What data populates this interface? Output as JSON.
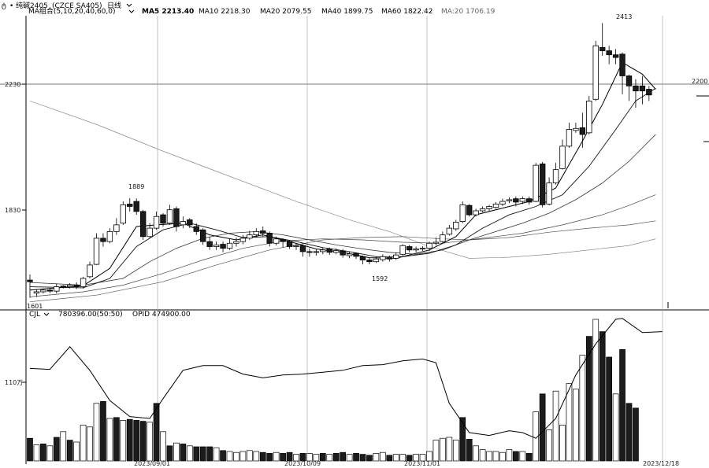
{
  "header": {
    "logo_glyph": "ტ",
    "instrument": "纯碱2405",
    "instrument_code": "(CZCE SA405)",
    "period_label": "日线",
    "indicator_name": "MA组合(5,10,20,40,60,0)",
    "ma5": "MA5 2213.40",
    "ma10": "MA10 2218.30",
    "ma20": "MA20 2079.55",
    "ma40": "MA40 1899.75",
    "ma60": "MA60 1822.42",
    "ma_extra": "MA:20 1706.19"
  },
  "volume_header": {
    "indicator": "CJL",
    "values": "780396.00(50:50)",
    "opi": "OPID 474900.00"
  },
  "colors": {
    "up": "#ffffff",
    "down": "#1c1c1c",
    "line": "#000000",
    "grid": "#9a9a9a"
  },
  "icons": {
    "header_chevron": "chevron-down-icon",
    "period_chevron": "chevron-down-icon"
  },
  "chart_data": {
    "type": "candlestick",
    "price_axis": {
      "ticks": [
        "2230",
        "1830"
      ],
      "right_label": "2200"
    },
    "volume_axis": {
      "ticks": [
        "110万"
      ]
    },
    "x_ticks": [
      "2023/09/01",
      "2023/10/09",
      "2023/11/01",
      "2023/12/18"
    ],
    "annotations": {
      "high": "2413",
      "peak": "1889",
      "low": "1592",
      "start_low": "1601"
    },
    "candles": [
      [
        1645,
        1640,
        1662,
        1592
      ],
      [
        1606,
        1610,
        1618,
        1595
      ],
      [
        1610,
        1615,
        1620,
        1605
      ],
      [
        1615,
        1612,
        1622,
        1606
      ],
      [
        1612,
        1625,
        1635,
        1605
      ],
      [
        1627,
        1624,
        1630,
        1620
      ],
      [
        1625,
        1630,
        1636,
        1620
      ],
      [
        1630,
        1625,
        1638,
        1618
      ],
      [
        1625,
        1650,
        1655,
        1620
      ],
      [
        1655,
        1690,
        1700,
        1650
      ],
      [
        1692,
        1770,
        1785,
        1690
      ],
      [
        1770,
        1760,
        1785,
        1745
      ],
      [
        1760,
        1790,
        1800,
        1755
      ],
      [
        1790,
        1810,
        1830,
        1780
      ],
      [
        1815,
        1870,
        1880,
        1810
      ],
      [
        1872,
        1865,
        1890,
        1850
      ],
      [
        1880,
        1850,
        1889,
        1840
      ],
      [
        1850,
        1775,
        1855,
        1765
      ],
      [
        1775,
        1800,
        1815,
        1770
      ],
      [
        1800,
        1835,
        1850,
        1795
      ],
      [
        1840,
        1815,
        1845,
        1805
      ],
      [
        1815,
        1855,
        1870,
        1810
      ],
      [
        1858,
        1805,
        1865,
        1790
      ],
      [
        1810,
        1820,
        1835,
        1800
      ],
      [
        1825,
        1810,
        1830,
        1800
      ],
      [
        1805,
        1790,
        1815,
        1780
      ],
      [
        1795,
        1760,
        1800,
        1750
      ],
      [
        1760,
        1745,
        1775,
        1735
      ],
      [
        1745,
        1750,
        1760,
        1735
      ],
      [
        1752,
        1740,
        1760,
        1728
      ],
      [
        1740,
        1755,
        1768,
        1735
      ],
      [
        1755,
        1760,
        1772,
        1745
      ],
      [
        1760,
        1770,
        1780,
        1752
      ],
      [
        1770,
        1780,
        1792,
        1765
      ],
      [
        1780,
        1790,
        1800,
        1772
      ],
      [
        1792,
        1785,
        1805,
        1775
      ],
      [
        1785,
        1755,
        1790,
        1745
      ],
      [
        1755,
        1768,
        1775,
        1748
      ],
      [
        1765,
        1760,
        1770,
        1742
      ],
      [
        1760,
        1745,
        1765,
        1738
      ],
      [
        1745,
        1748,
        1755,
        1735
      ],
      [
        1748,
        1730,
        1752,
        1715
      ],
      [
        1730,
        1728,
        1740,
        1715
      ],
      [
        1728,
        1730,
        1738,
        1718
      ],
      [
        1730,
        1735,
        1742,
        1722
      ],
      [
        1738,
        1728,
        1742,
        1720
      ],
      [
        1728,
        1733,
        1740,
        1722
      ],
      [
        1732,
        1720,
        1738,
        1712
      ],
      [
        1718,
        1723,
        1730,
        1710
      ],
      [
        1725,
        1716,
        1728,
        1708
      ],
      [
        1715,
        1705,
        1718,
        1692
      ],
      [
        1705,
        1700,
        1712,
        1692
      ],
      [
        1700,
        1708,
        1715,
        1696
      ],
      [
        1706,
        1715,
        1722,
        1700
      ],
      [
        1712,
        1708,
        1718,
        1700
      ],
      [
        1710,
        1720,
        1728,
        1705
      ],
      [
        1722,
        1748,
        1752,
        1718
      ],
      [
        1745,
        1735,
        1750,
        1728
      ],
      [
        1735,
        1738,
        1745,
        1728
      ],
      [
        1738,
        1740,
        1746,
        1732
      ],
      [
        1740,
        1755,
        1760,
        1732
      ],
      [
        1755,
        1758,
        1772,
        1748
      ],
      [
        1760,
        1780,
        1790,
        1755
      ],
      [
        1782,
        1800,
        1810,
        1778
      ],
      [
        1798,
        1818,
        1825,
        1792
      ],
      [
        1820,
        1870,
        1880,
        1815
      ],
      [
        1868,
        1840,
        1872,
        1835
      ],
      [
        1840,
        1852,
        1858,
        1835
      ],
      [
        1852,
        1858,
        1865,
        1848
      ],
      [
        1858,
        1865,
        1870,
        1850
      ],
      [
        1862,
        1872,
        1878,
        1858
      ],
      [
        1872,
        1880,
        1888,
        1866
      ],
      [
        1882,
        1885,
        1892,
        1875
      ],
      [
        1888,
        1878,
        1895,
        1865
      ],
      [
        1880,
        1888,
        1895,
        1872
      ],
      [
        1888,
        1878,
        1895,
        1870
      ],
      [
        1880,
        1988,
        1995,
        1878
      ],
      [
        1992,
        1870,
        1998,
        1862
      ],
      [
        1872,
        1935,
        1952,
        1868
      ],
      [
        1935,
        1975,
        1995,
        1930
      ],
      [
        1978,
        2045,
        2065,
        1975
      ],
      [
        2045,
        2095,
        2115,
        2040
      ],
      [
        2092,
        2098,
        2115,
        2085
      ],
      [
        2100,
        2080,
        2145,
        2040
      ],
      [
        2085,
        2180,
        2195,
        2080
      ],
      [
        2185,
        2345,
        2360,
        2180
      ],
      [
        2340,
        2330,
        2413,
        2315
      ],
      [
        2330,
        2318,
        2345,
        2290
      ],
      [
        2318,
        2310,
        2335,
        2290
      ],
      [
        2320,
        2255,
        2325,
        2200
      ],
      [
        2255,
        2225,
        2258,
        2180
      ],
      [
        2225,
        2210,
        2245,
        2160
      ],
      [
        2225,
        2210,
        2255,
        2170
      ],
      [
        2215,
        2198,
        2225,
        2180
      ]
    ],
    "ma5": [
      [
        0,
        1615
      ],
      [
        8,
        1628
      ],
      [
        12,
        1680
      ],
      [
        16,
        1805
      ],
      [
        19,
        1810
      ],
      [
        23,
        1815
      ],
      [
        27,
        1780
      ],
      [
        31,
        1765
      ],
      [
        35,
        1780
      ],
      [
        39,
        1760
      ],
      [
        43,
        1738
      ],
      [
        47,
        1728
      ],
      [
        51,
        1712
      ],
      [
        55,
        1710
      ],
      [
        60,
        1735
      ],
      [
        64,
        1775
      ],
      [
        67,
        1840
      ],
      [
        71,
        1860
      ],
      [
        75,
        1880
      ],
      [
        79,
        1920
      ],
      [
        83,
        2060
      ],
      [
        86,
        2170
      ],
      [
        89,
        2295
      ],
      [
        92,
        2260
      ],
      [
        94,
        2215
      ]
    ],
    "ma10": [
      [
        0,
        1625
      ],
      [
        8,
        1622
      ],
      [
        12,
        1650
      ],
      [
        16,
        1745
      ],
      [
        20,
        1795
      ],
      [
        24,
        1815
      ],
      [
        28,
        1795
      ],
      [
        32,
        1772
      ],
      [
        36,
        1775
      ],
      [
        40,
        1760
      ],
      [
        44,
        1742
      ],
      [
        48,
        1730
      ],
      [
        52,
        1715
      ],
      [
        56,
        1715
      ],
      [
        60,
        1725
      ],
      [
        64,
        1750
      ],
      [
        68,
        1800
      ],
      [
        72,
        1840
      ],
      [
        76,
        1865
      ],
      [
        80,
        1900
      ],
      [
        84,
        1985
      ],
      [
        88,
        2095
      ],
      [
        91,
        2180
      ],
      [
        94,
        2218
      ]
    ],
    "ma20": [
      [
        0,
        1638
      ],
      [
        8,
        1630
      ],
      [
        14,
        1650
      ],
      [
        18,
        1700
      ],
      [
        22,
        1740
      ],
      [
        26,
        1770
      ],
      [
        30,
        1785
      ],
      [
        34,
        1790
      ],
      [
        38,
        1780
      ],
      [
        42,
        1765
      ],
      [
        46,
        1750
      ],
      [
        50,
        1738
      ],
      [
        54,
        1728
      ],
      [
        58,
        1722
      ],
      [
        62,
        1735
      ],
      [
        66,
        1765
      ],
      [
        70,
        1790
      ],
      [
        74,
        1815
      ],
      [
        78,
        1845
      ],
      [
        82,
        1885
      ],
      [
        86,
        1935
      ],
      [
        90,
        2000
      ],
      [
        94,
        2080
      ]
    ],
    "ma40": [
      [
        0,
        1595
      ],
      [
        8,
        1610
      ],
      [
        14,
        1630
      ],
      [
        20,
        1665
      ],
      [
        26,
        1705
      ],
      [
        32,
        1740
      ],
      [
        38,
        1762
      ],
      [
        44,
        1768
      ],
      [
        50,
        1765
      ],
      [
        56,
        1758
      ],
      [
        62,
        1755
      ],
      [
        68,
        1770
      ],
      [
        74,
        1785
      ],
      [
        80,
        1810
      ],
      [
        86,
        1840
      ],
      [
        90,
        1868
      ],
      [
        94,
        1900
      ]
    ],
    "ma60": [
      [
        0,
        1580
      ],
      [
        10,
        1600
      ],
      [
        20,
        1640
      ],
      [
        28,
        1690
      ],
      [
        36,
        1735
      ],
      [
        44,
        1765
      ],
      [
        50,
        1772
      ],
      [
        56,
        1775
      ],
      [
        62,
        1768
      ],
      [
        66,
        1765
      ],
      [
        72,
        1772
      ],
      [
        78,
        1788
      ],
      [
        84,
        1800
      ],
      [
        90,
        1810
      ],
      [
        94,
        1822
      ]
    ],
    "ma_long": [
      [
        0,
        2180
      ],
      [
        10,
        2110
      ],
      [
        20,
        2030
      ],
      [
        30,
        1955
      ],
      [
        40,
        1880
      ],
      [
        48,
        1825
      ],
      [
        54,
        1790
      ],
      [
        60,
        1745
      ],
      [
        66,
        1710
      ],
      [
        72,
        1713
      ],
      [
        78,
        1722
      ],
      [
        84,
        1735
      ],
      [
        90,
        1748
      ],
      [
        94,
        1768
      ]
    ],
    "volume": [
      24,
      17,
      18,
      16,
      25,
      31,
      22,
      20,
      38,
      36,
      61,
      63,
      45,
      46,
      43,
      44,
      43,
      42,
      41,
      61,
      31,
      16,
      19,
      18,
      16,
      15,
      15,
      15,
      14,
      11,
      10,
      9,
      10,
      11,
      10,
      9,
      8,
      9,
      8,
      9,
      7,
      8,
      8,
      7,
      8,
      7,
      8,
      9,
      7,
      8,
      7,
      6,
      8,
      9,
      6,
      7,
      7,
      6,
      7,
      7,
      10,
      22,
      24,
      25,
      22,
      46,
      23,
      16,
      12,
      10,
      10,
      9,
      12,
      10,
      10,
      8,
      52,
      71,
      33,
      74,
      38,
      82,
      76,
      112,
      132,
      150,
      137,
      110,
      71,
      118,
      61,
      56
    ],
    "volume_up": [
      false,
      true,
      false,
      true,
      false,
      true,
      false,
      true,
      true,
      true,
      true,
      false,
      true,
      false,
      true,
      false,
      false,
      false,
      true,
      false,
      true,
      false,
      true,
      false,
      true,
      false,
      false,
      false,
      true,
      false,
      true,
      true,
      true,
      true,
      true,
      false,
      false,
      true,
      false,
      false,
      true,
      false,
      true,
      true,
      false,
      true,
      false,
      false,
      true,
      false,
      false,
      false,
      true,
      true,
      false,
      true,
      true,
      false,
      true,
      true,
      true,
      true,
      true,
      true,
      true,
      false,
      false,
      true,
      true,
      true,
      true,
      true,
      true,
      false,
      true,
      false,
      true,
      false,
      true,
      true,
      true,
      true,
      true,
      true,
      false,
      true,
      false,
      false,
      true,
      false,
      false,
      false
    ],
    "opi_line": [
      [
        0,
        98
      ],
      [
        3,
        97
      ],
      [
        6,
        121
      ],
      [
        9,
        96
      ],
      [
        12,
        64
      ],
      [
        15,
        47
      ],
      [
        18,
        45
      ],
      [
        20,
        66
      ],
      [
        23,
        96
      ],
      [
        26,
        101
      ],
      [
        29,
        101
      ],
      [
        32,
        92
      ],
      [
        35,
        88
      ],
      [
        38,
        91
      ],
      [
        41,
        92
      ],
      [
        44,
        94
      ],
      [
        47,
        96
      ],
      [
        50,
        101
      ],
      [
        53,
        102
      ],
      [
        56,
        106
      ],
      [
        59,
        108
      ],
      [
        61,
        104
      ],
      [
        63,
        61
      ],
      [
        66,
        30
      ],
      [
        69,
        27
      ],
      [
        72,
        32
      ],
      [
        74,
        30
      ],
      [
        76,
        24
      ],
      [
        79,
        45
      ],
      [
        82,
        91
      ],
      [
        85,
        124
      ],
      [
        88,
        150
      ],
      [
        89,
        151
      ],
      [
        92,
        136
      ],
      [
        95,
        137
      ]
    ]
  }
}
